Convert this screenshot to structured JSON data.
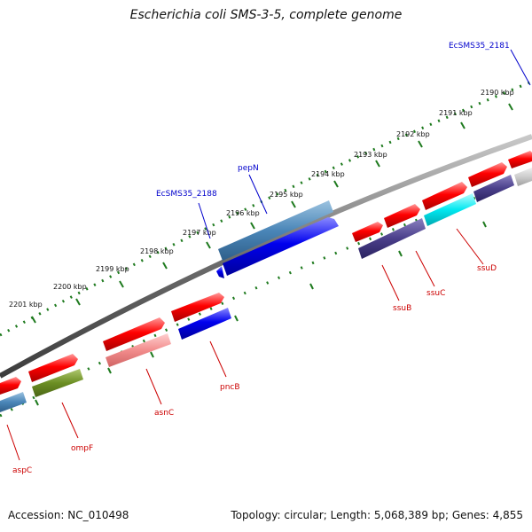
{
  "title": "Escherichia coli SMS-3-5, complete genome",
  "footer": {
    "accession": "Accession: NC_010498",
    "summary": "Topology: circular; Length: 5,068,389 bp; Genes: 4,855"
  },
  "colors": {
    "kbp_ticks": "#1e7a1e",
    "backbone": "#7f7f7f",
    "label_red": "#cc0000",
    "label_blue": "#0000cc"
  },
  "kbp_labels": [
    "2190 kbp",
    "2191 kbp",
    "2192 kbp",
    "2193 kbp",
    "2194 kbp",
    "2195 kbp",
    "2196 kbp",
    "2197 kbp",
    "2198 kbp",
    "2199 kbp",
    "2200 kbp",
    "2201 kbp"
  ],
  "gene_labels": [
    {
      "name": "EcSMS35_2181",
      "color": "blue"
    },
    {
      "name": "pepN",
      "color": "blue"
    },
    {
      "name": "EcSMS35_2188",
      "color": "blue"
    },
    {
      "name": "ssuD",
      "color": "red"
    },
    {
      "name": "ssuC",
      "color": "red"
    },
    {
      "name": "ssuB",
      "color": "red"
    },
    {
      "name": "pncB",
      "color": "red"
    },
    {
      "name": "asnC",
      "color": "red"
    },
    {
      "name": "ompF",
      "color": "red"
    },
    {
      "name": "aspC",
      "color": "red"
    }
  ]
}
